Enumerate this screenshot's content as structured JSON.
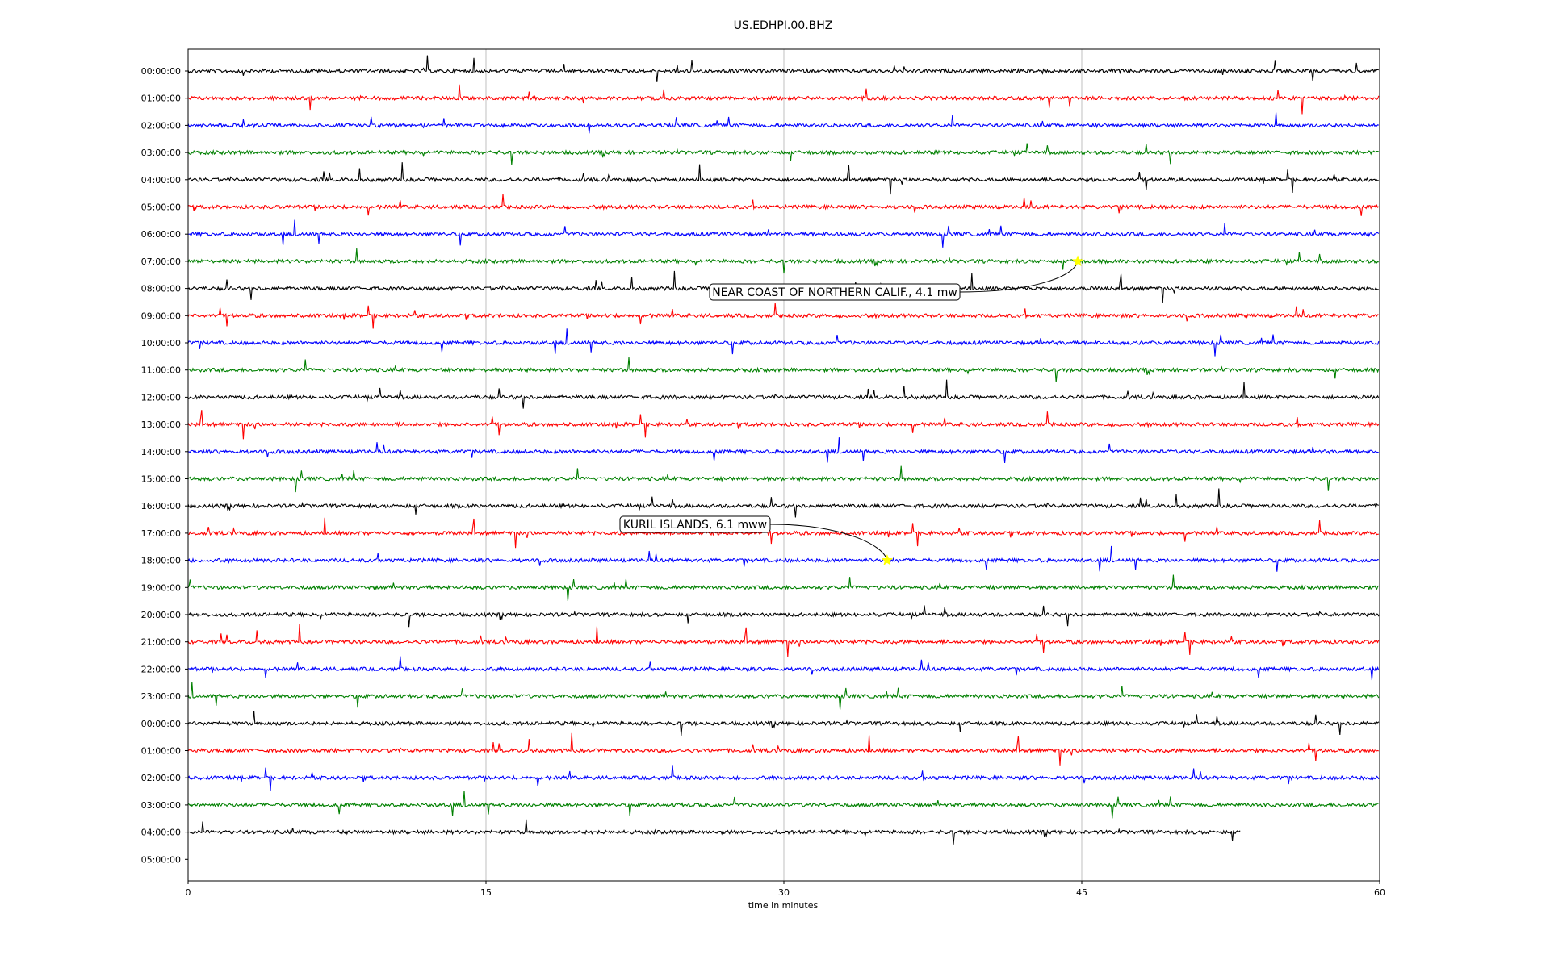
{
  "chart_data": {
    "type": "line",
    "title": "US.EDHPI.00.BHZ",
    "xlabel": "time in minutes",
    "xlim": [
      0,
      60
    ],
    "x_ticks": [
      0,
      15,
      30,
      45,
      60
    ],
    "x_tick_labels": [
      "0",
      "15",
      "30",
      "45",
      "60"
    ],
    "grid": "vertical",
    "row_labels": [
      "00:00:00",
      "01:00:00",
      "02:00:00",
      "03:00:00",
      "04:00:00",
      "05:00:00",
      "06:00:00",
      "07:00:00",
      "08:00:00",
      "09:00:00",
      "10:00:00",
      "11:00:00",
      "12:00:00",
      "13:00:00",
      "14:00:00",
      "15:00:00",
      "16:00:00",
      "17:00:00",
      "18:00:00",
      "19:00:00",
      "20:00:00",
      "21:00:00",
      "22:00:00",
      "23:00:00",
      "00:00:00",
      "01:00:00",
      "02:00:00",
      "03:00:00",
      "04:00:00",
      "05:00:00"
    ],
    "trace_colors": [
      "#000000",
      "#ff0000",
      "#0000ff",
      "#008000"
    ],
    "last_trace_end_minute": 53,
    "events": [
      {
        "label": "NEAR COAST OF NORTHERN CALIF., 4.1 mw",
        "row": 7,
        "minute": 44.8
      },
      {
        "label": "KURIL ISLANDS, 6.1 mww",
        "row": 18,
        "minute": 35.2
      }
    ],
    "marker_color": "#ffff00"
  }
}
